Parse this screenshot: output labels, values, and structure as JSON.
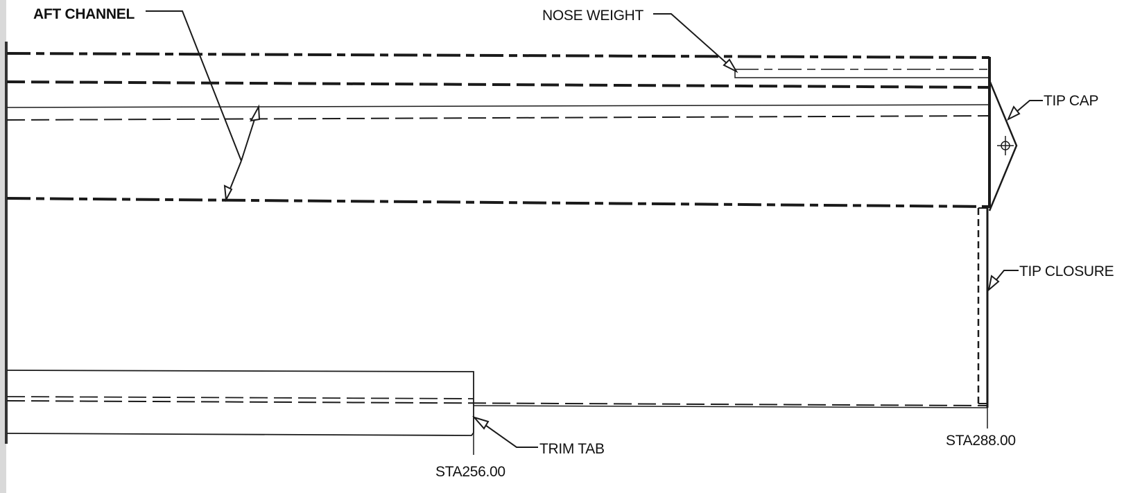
{
  "labels": {
    "aft_channel": "AFT CHANNEL",
    "nose_weight": "NOSE WEIGHT",
    "tip_cap": "TIP CAP",
    "tip_closure": "TIP CLOSURE",
    "trim_tab": "TRIM TAB",
    "sta_256": "STA256.00",
    "sta_288": "STA288.00"
  }
}
